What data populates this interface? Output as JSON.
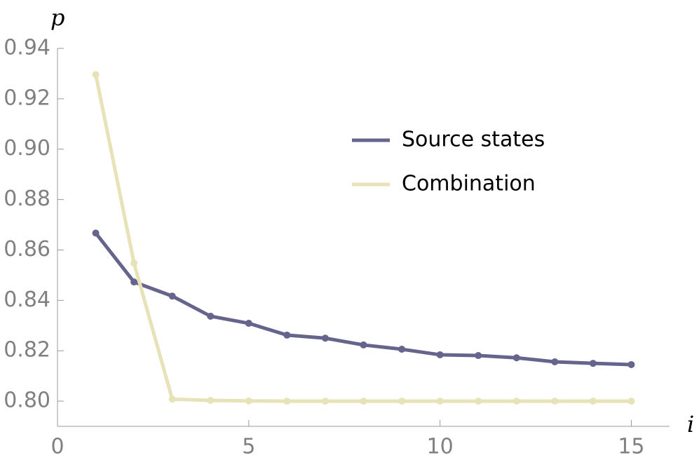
{
  "chart_data": {
    "type": "line",
    "x_label": "i",
    "y_label": "p",
    "x": [
      1,
      2,
      3,
      4,
      5,
      6,
      7,
      8,
      9,
      10,
      11,
      12,
      13,
      14,
      15
    ],
    "series": [
      {
        "name": "Source states",
        "color": "#64648c",
        "values": [
          0.8667,
          0.8473,
          0.8417,
          0.8337,
          0.8309,
          0.8262,
          0.825,
          0.8223,
          0.8206,
          0.8184,
          0.8181,
          0.8172,
          0.8156,
          0.815,
          0.8145
        ]
      },
      {
        "name": "Combination",
        "color": "#e8e2b8",
        "values": [
          0.9296,
          0.8548,
          0.8008,
          0.8003,
          0.8001,
          0.8,
          0.8,
          0.8,
          0.8,
          0.8,
          0.8,
          0.8,
          0.8,
          0.8,
          0.8
        ]
      }
    ],
    "xlim": [
      0,
      16
    ],
    "xticks": [
      0,
      5,
      10,
      15
    ],
    "ylim": [
      0.79,
      0.94
    ],
    "yticks": [
      {
        "value": 0.8,
        "label": "0.80"
      },
      0.82,
      0.84,
      0.86,
      0.88,
      {
        "value": 0.9,
        "label": "0.90"
      },
      0.92,
      0.94
    ]
  }
}
